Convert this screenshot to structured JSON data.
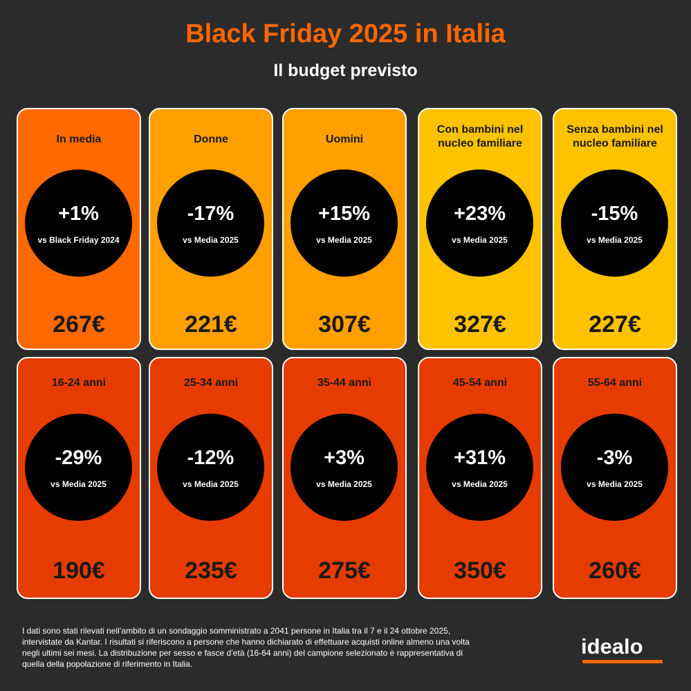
{
  "header": {
    "title": "Black Friday 2025 in Italia",
    "subtitle": "Il budget previsto"
  },
  "row1": [
    {
      "label": "In media",
      "pct": "+1%",
      "vs": "vs Black Friday 2024",
      "amount": "267€",
      "color": "#ff6a00"
    },
    {
      "label": "Donne",
      "pct": "-17%",
      "vs": "vs Media 2025",
      "amount": "221€",
      "color": "#ff9f00"
    },
    {
      "label": "Uomini",
      "pct": "+15%",
      "vs": "vs Media 2025",
      "amount": "307€",
      "color": "#ff9f00"
    },
    {
      "label": "Con bambini nel nucleo familiare",
      "pct": "+23%",
      "vs": "vs Media 2025",
      "amount": "327€",
      "color": "#ffc200"
    },
    {
      "label": "Senza bambini nel nucleo familiare",
      "pct": "-15%",
      "vs": "vs Media 2025",
      "amount": "227€",
      "color": "#ffc200"
    }
  ],
  "row2": [
    {
      "label": "16-24 anni",
      "pct": "-29%",
      "vs": "vs Media 2025",
      "amount": "190€",
      "color": "#e63c00"
    },
    {
      "label": "25-34 anni",
      "pct": "-12%",
      "vs": "vs Media 2025",
      "amount": "235€",
      "color": "#e63c00"
    },
    {
      "label": "35-44 anni",
      "pct": "+3%",
      "vs": "vs Media 2025",
      "amount": "275€",
      "color": "#e63c00"
    },
    {
      "label": "45-54 anni",
      "pct": "+31%",
      "vs": "vs Media 2025",
      "amount": "350€",
      "color": "#e63c00"
    },
    {
      "label": "55-64 anni",
      "pct": "-3%",
      "vs": "vs Media 2025",
      "amount": "260€",
      "color": "#e63c00"
    }
  ],
  "footnote": "I dati sono stati rilevati nell’ambito di un sondaggio somministrato a 2041 persone in Italia tra il 7 e il 24 ottobre 2025, intervistate da Kantar. I risultati si riferiscono a persone che hanno dichiarato di effettuare acquisti online almeno una volta negli ultimi sei mesi. La distribuzione per sesso e fasce d’età (16-64 anni) del campione selezionato è rappresentativa di quella della popolazione di riferimento in Italia.",
  "logo": {
    "text": "idealo",
    "accent": "#ff6600"
  }
}
